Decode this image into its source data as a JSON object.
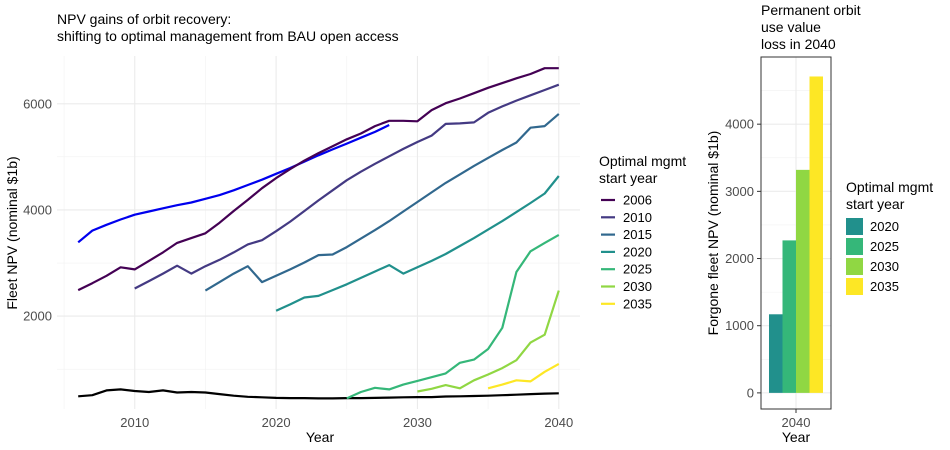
{
  "chart_data": [
    {
      "type": "line",
      "title": "NPV gains of orbit recovery:",
      "subtitle": "shifting to optimal management from BAU open access",
      "xlabel": "Year",
      "ylabel": "Fleet NPV (nominal $1b)",
      "xlim": [
        2004.5,
        2041.5
      ],
      "ylim": [
        250,
        6900
      ],
      "xticks": [
        "2010",
        "2020",
        "2030",
        "2040"
      ],
      "yticks": [
        "2000",
        "4000",
        "6000"
      ],
      "grid": true,
      "legend": {
        "title_line1": "Optimal mgmt",
        "title_line2": "start year",
        "placement": "right"
      },
      "series": [
        {
          "name": "",
          "color": "#000000",
          "x": [
            2006,
            2007,
            2008,
            2009,
            2010,
            2011,
            2012,
            2013,
            2014,
            2015,
            2016,
            2017,
            2018,
            2019,
            2020,
            2021,
            2022,
            2023,
            2024,
            2025,
            2026,
            2027,
            2028,
            2029,
            2030,
            2031,
            2032,
            2033,
            2034,
            2035,
            2036,
            2037,
            2038,
            2039,
            2040
          ],
          "y": [
            490,
            510,
            600,
            620,
            590,
            570,
            600,
            560,
            570,
            560,
            530,
            500,
            480,
            470,
            460,
            455,
            455,
            450,
            450,
            455,
            455,
            460,
            465,
            470,
            475,
            475,
            485,
            490,
            495,
            500,
            510,
            520,
            530,
            540,
            545
          ]
        },
        {
          "name": "",
          "color": "#0000ee",
          "x": [
            2006,
            2007,
            2008,
            2009,
            2010,
            2011,
            2012,
            2013,
            2014,
            2015,
            2016,
            2017,
            2018,
            2019,
            2020,
            2021,
            2022,
            2023,
            2024,
            2025,
            2026,
            2027,
            2028
          ],
          "y": [
            3390,
            3610,
            3720,
            3820,
            3910,
            3970,
            4030,
            4090,
            4140,
            4210,
            4280,
            4370,
            4470,
            4570,
            4680,
            4790,
            4910,
            5030,
            5140,
            5250,
            5360,
            5470,
            5600
          ]
        },
        {
          "name": "2006",
          "color": "#440154",
          "x": [
            2006,
            2007,
            2008,
            2009,
            2010,
            2011,
            2012,
            2013,
            2014,
            2015,
            2016,
            2017,
            2018,
            2019,
            2020,
            2021,
            2022,
            2023,
            2024,
            2025,
            2026,
            2027,
            2028,
            2029,
            2030,
            2031,
            2032,
            2033,
            2034,
            2035,
            2036,
            2037,
            2038,
            2039,
            2040
          ],
          "y": [
            2490,
            2620,
            2760,
            2920,
            2880,
            3040,
            3200,
            3380,
            3470,
            3560,
            3760,
            3980,
            4190,
            4410,
            4600,
            4770,
            4930,
            5070,
            5200,
            5330,
            5440,
            5580,
            5680,
            5680,
            5670,
            5880,
            6010,
            6100,
            6200,
            6300,
            6390,
            6480,
            6560,
            6670,
            6670
          ]
        },
        {
          "name": "2010",
          "color": "#443a83",
          "x": [
            2010,
            2011,
            2012,
            2013,
            2014,
            2015,
            2016,
            2017,
            2018,
            2019,
            2020,
            2021,
            2022,
            2023,
            2024,
            2025,
            2026,
            2027,
            2028,
            2029,
            2030,
            2031,
            2032,
            2033,
            2034,
            2035,
            2036,
            2037,
            2038,
            2039,
            2040
          ],
          "y": [
            2520,
            2660,
            2800,
            2950,
            2800,
            2940,
            3060,
            3200,
            3350,
            3430,
            3600,
            3780,
            3980,
            4180,
            4370,
            4560,
            4720,
            4870,
            5010,
            5150,
            5280,
            5400,
            5620,
            5630,
            5650,
            5830,
            5950,
            6060,
            6160,
            6260,
            6360
          ]
        },
        {
          "name": "2015",
          "color": "#31688e",
          "x": [
            2015,
            2016,
            2017,
            2018,
            2019,
            2020,
            2021,
            2022,
            2023,
            2024,
            2025,
            2026,
            2027,
            2028,
            2029,
            2030,
            2031,
            2032,
            2033,
            2034,
            2035,
            2036,
            2037,
            2038,
            2039,
            2040
          ],
          "y": [
            2480,
            2640,
            2800,
            2940,
            2640,
            2760,
            2880,
            3010,
            3150,
            3160,
            3300,
            3460,
            3620,
            3790,
            3970,
            4150,
            4330,
            4510,
            4670,
            4830,
            4980,
            5130,
            5270,
            5550,
            5580,
            5810
          ]
        },
        {
          "name": "2020",
          "color": "#21908c",
          "x": [
            2020,
            2021,
            2022,
            2023,
            2024,
            2025,
            2026,
            2027,
            2028,
            2029,
            2030,
            2031,
            2032,
            2033,
            2034,
            2035,
            2036,
            2037,
            2038,
            2039,
            2040
          ],
          "y": [
            2100,
            2220,
            2350,
            2380,
            2490,
            2600,
            2720,
            2840,
            2960,
            2800,
            2920,
            3040,
            3170,
            3320,
            3470,
            3630,
            3790,
            3960,
            4130,
            4310,
            4640
          ]
        },
        {
          "name": "2025",
          "color": "#35b779",
          "x": [
            2025,
            2026,
            2027,
            2028,
            2029,
            2030,
            2031,
            2032,
            2033,
            2034,
            2035,
            2036,
            2037,
            2038,
            2039,
            2040
          ],
          "y": [
            450,
            570,
            650,
            620,
            710,
            780,
            850,
            920,
            1120,
            1180,
            1380,
            1780,
            2830,
            3220,
            3380,
            3530
          ]
        },
        {
          "name": "2030",
          "color": "#90d743",
          "x": [
            2030,
            2031,
            2032,
            2033,
            2034,
            2035,
            2036,
            2037,
            2038,
            2039,
            2040
          ],
          "y": [
            580,
            630,
            700,
            640,
            790,
            900,
            1020,
            1170,
            1500,
            1650,
            2480
          ]
        },
        {
          "name": "2035",
          "color": "#fde725",
          "x": [
            2035,
            2036,
            2037,
            2038,
            2039,
            2040
          ],
          "y": [
            640,
            710,
            790,
            770,
            950,
            1100
          ]
        }
      ]
    },
    {
      "type": "bar",
      "title_lines": [
        "Permanent orbit",
        "use value",
        "loss in 2040"
      ],
      "xlabel": "Year",
      "ylabel": "Forgone fleet NPV (nominal $1b)",
      "categories": [
        "2040"
      ],
      "ylim": [
        -240,
        5000
      ],
      "yticks": [
        "0",
        "1000",
        "2000",
        "3000",
        "4000"
      ],
      "grid": true,
      "legend": {
        "title_line1": "Optimal mgmt",
        "title_line2": "start year",
        "placement": "right"
      },
      "series": [
        {
          "name": "2020",
          "color": "#21908c",
          "value": 1170
        },
        {
          "name": "2025",
          "color": "#35b779",
          "value": 2270
        },
        {
          "name": "2030",
          "color": "#90d743",
          "value": 3320
        },
        {
          "name": "2035",
          "color": "#fde725",
          "value": 4710
        }
      ]
    }
  ]
}
